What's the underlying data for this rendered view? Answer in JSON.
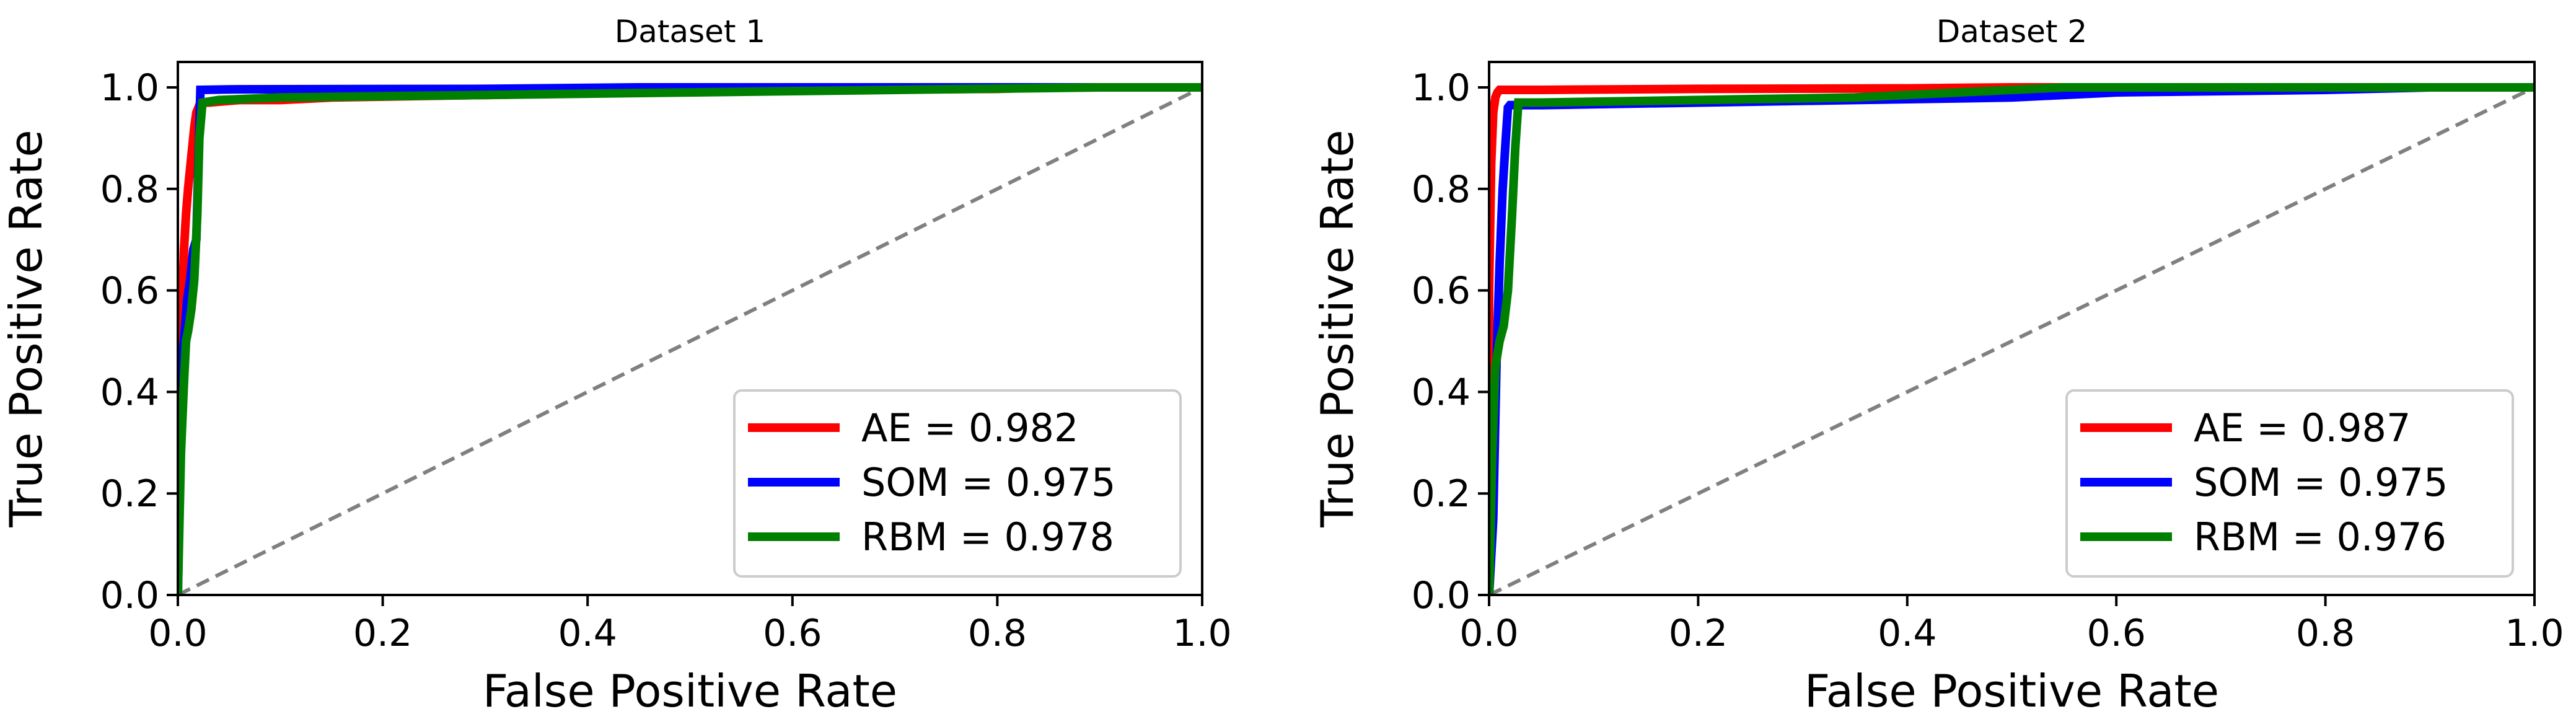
{
  "chart_data": [
    {
      "type": "line",
      "title": "Dataset 1",
      "xlabel": "False Positive Rate",
      "ylabel": "True Positive Rate",
      "xlim": [
        0.0,
        1.0
      ],
      "ylim": [
        0.0,
        1.05
      ],
      "xticks": [
        "0.0",
        "0.2",
        "0.4",
        "0.6",
        "0.8",
        "1.0"
      ],
      "yticks": [
        "0.0",
        "0.2",
        "0.4",
        "0.6",
        "0.8",
        "1.0"
      ],
      "grid": false,
      "legend_position": "lower-right",
      "reference_line": {
        "x": [
          0,
          1
        ],
        "y": [
          0,
          1
        ],
        "color": "#808080",
        "style": "dashed"
      },
      "series": [
        {
          "name": "AE = 0.982",
          "color": "#ff0000",
          "x": [
            0.0,
            0.0,
            0.004,
            0.006,
            0.008,
            0.01,
            0.012,
            0.014,
            0.016,
            0.018,
            0.022,
            0.03,
            0.06,
            0.1,
            0.15,
            0.3,
            0.45,
            0.6,
            0.8,
            0.85,
            1.0
          ],
          "y": [
            0.0,
            0.4,
            0.55,
            0.68,
            0.75,
            0.8,
            0.84,
            0.88,
            0.92,
            0.95,
            0.97,
            0.97,
            0.975,
            0.975,
            0.98,
            0.985,
            0.99,
            0.995,
            0.997,
            1.0,
            1.0
          ]
        },
        {
          "name": "SOM = 0.975",
          "color": "#0000ff",
          "x": [
            0.0,
            0.003,
            0.006,
            0.009,
            0.012,
            0.015,
            0.018,
            0.02,
            0.022,
            0.05,
            0.3,
            0.45,
            0.7,
            0.85,
            1.0
          ],
          "y": [
            0.0,
            0.42,
            0.5,
            0.58,
            0.62,
            0.68,
            0.7,
            0.85,
            0.995,
            0.996,
            0.997,
            1.0,
            1.0,
            1.0,
            1.0
          ]
        },
        {
          "name": "RBM = 0.978",
          "color": "#008000",
          "x": [
            0.0,
            0.003,
            0.006,
            0.008,
            0.01,
            0.013,
            0.016,
            0.019,
            0.021,
            0.024,
            0.04,
            0.1,
            0.3,
            0.5,
            0.7,
            0.9,
            1.0
          ],
          "y": [
            0.0,
            0.28,
            0.42,
            0.5,
            0.52,
            0.56,
            0.62,
            0.75,
            0.9,
            0.97,
            0.975,
            0.98,
            0.985,
            0.99,
            0.995,
            1.0,
            1.0
          ]
        }
      ]
    },
    {
      "type": "line",
      "title": "Dataset 2",
      "xlabel": "False Positive Rate",
      "ylabel": "True Positive Rate",
      "xlim": [
        0.0,
        1.0
      ],
      "ylim": [
        0.0,
        1.05
      ],
      "xticks": [
        "0.0",
        "0.2",
        "0.4",
        "0.6",
        "0.8",
        "1.0"
      ],
      "yticks": [
        "0.0",
        "0.2",
        "0.4",
        "0.6",
        "0.8",
        "1.0"
      ],
      "grid": false,
      "legend_position": "lower-right",
      "reference_line": {
        "x": [
          0,
          1
        ],
        "y": [
          0,
          1
        ],
        "color": "#808080",
        "style": "dashed"
      },
      "series": [
        {
          "name": "AE = 0.987",
          "color": "#ff0000",
          "x": [
            0.0,
            0.0,
            0.002,
            0.004,
            0.006,
            0.008,
            0.01,
            0.05,
            0.2,
            0.4,
            0.5,
            0.7,
            1.0
          ],
          "y": [
            0.0,
            0.6,
            0.85,
            0.95,
            0.98,
            0.99,
            0.995,
            0.995,
            0.997,
            0.998,
            1.0,
            1.0,
            1.0
          ]
        },
        {
          "name": "SOM = 0.975",
          "color": "#0000ff",
          "x": [
            0.0,
            0.004,
            0.007,
            0.01,
            0.013,
            0.016,
            0.018,
            0.02,
            0.05,
            0.2,
            0.35,
            0.5,
            0.6,
            0.8,
            0.9,
            1.0
          ],
          "y": [
            0.0,
            0.15,
            0.45,
            0.65,
            0.8,
            0.9,
            0.96,
            0.965,
            0.965,
            0.97,
            0.975,
            0.98,
            0.99,
            0.995,
            1.0,
            1.0
          ]
        },
        {
          "name": "RBM = 0.976",
          "color": "#008000",
          "x": [
            0.0,
            0.003,
            0.006,
            0.01,
            0.014,
            0.018,
            0.022,
            0.025,
            0.028,
            0.05,
            0.2,
            0.35,
            0.45,
            0.55,
            0.75,
            0.9,
            1.0
          ],
          "y": [
            0.0,
            0.28,
            0.45,
            0.5,
            0.53,
            0.6,
            0.75,
            0.88,
            0.97,
            0.97,
            0.975,
            0.98,
            0.99,
            1.0,
            1.0,
            1.0,
            1.0
          ]
        }
      ]
    }
  ]
}
